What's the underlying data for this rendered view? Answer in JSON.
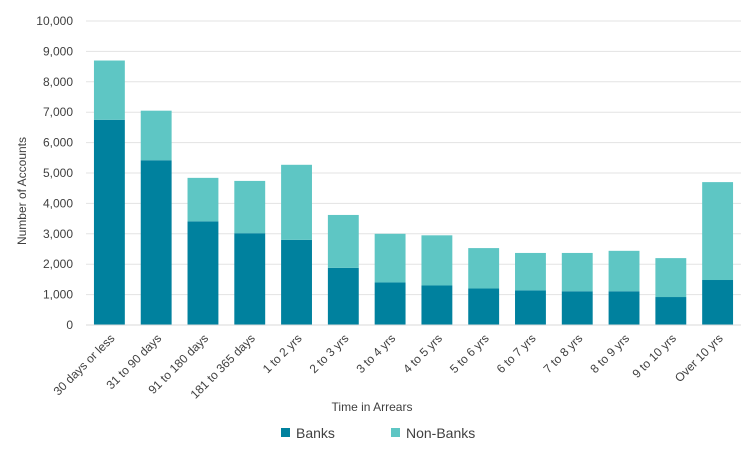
{
  "chart_data": {
    "type": "bar",
    "stacked": true,
    "categories": [
      "30 days or less",
      "31 to 90 days",
      "91 to 180 days",
      "181 to 365 days",
      "1 to 2 yrs",
      "2 to 3 yrs",
      "3 to 4 yrs",
      "4 to 5 yrs",
      "5 to 6 yrs",
      "6 to 7 yrs",
      "7 to 8 yrs",
      "8 to 9 yrs",
      "9 to 10 yrs",
      "Over 10 yrs"
    ],
    "series": [
      {
        "name": "Banks",
        "color": "#00819e",
        "values": [
          6750,
          5420,
          3410,
          3020,
          2800,
          1880,
          1400,
          1300,
          1200,
          1140,
          1110,
          1110,
          920,
          1480
        ]
      },
      {
        "name": "Non-Banks",
        "color": "#5ec6c4",
        "values": [
          1950,
          1630,
          1430,
          1720,
          2470,
          1740,
          1600,
          1650,
          1330,
          1230,
          1260,
          1330,
          1280,
          3220
        ]
      }
    ],
    "xlabel": "Time in Arrears",
    "ylabel": "Number of Accounts",
    "ylim": [
      0,
      10000
    ],
    "yticks": [
      "0",
      "1,000",
      "2,000",
      "3,000",
      "4,000",
      "5,000",
      "6,000",
      "7,000",
      "8,000",
      "9,000",
      "10,000"
    ],
    "grid": true,
    "legend_position": "bottom"
  }
}
